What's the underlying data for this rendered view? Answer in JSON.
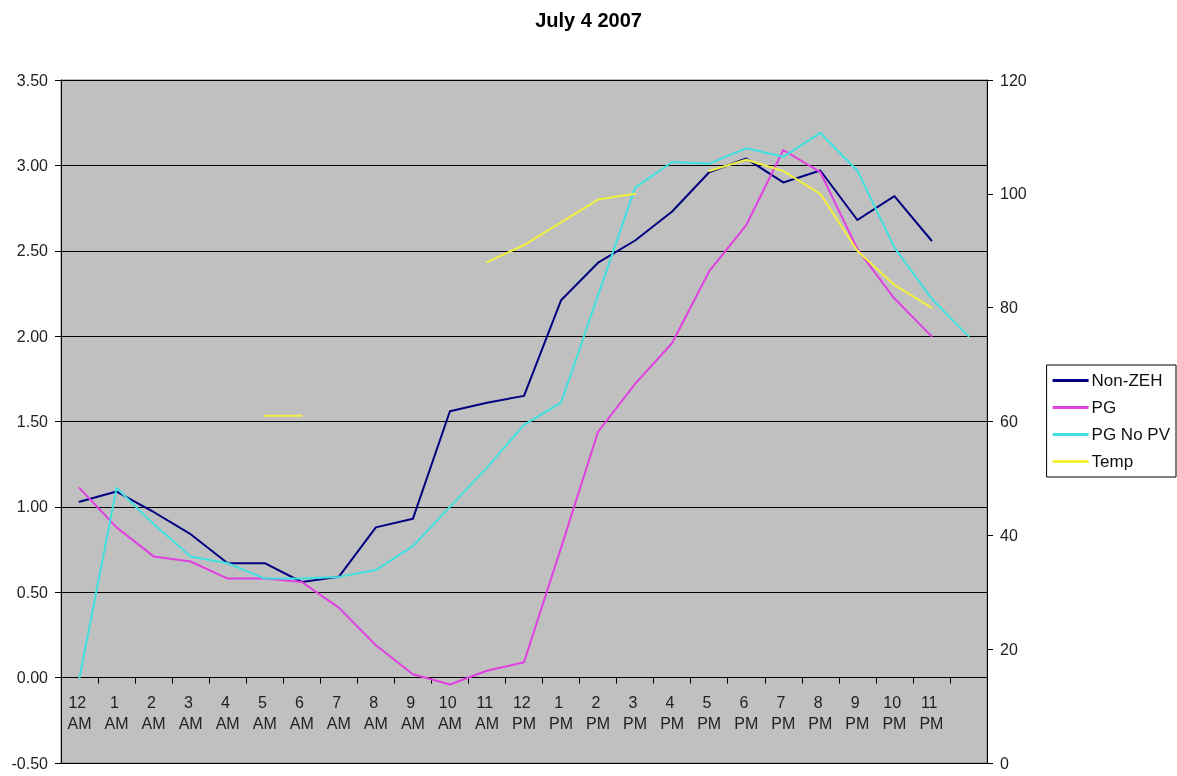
{
  "chart_data": {
    "type": "line",
    "title": "July 4 2007",
    "categories": [
      "12 AM",
      "1 AM",
      "2 AM",
      "3 AM",
      "4 AM",
      "5 AM",
      "6 AM",
      "7 AM",
      "8 AM",
      "9 AM",
      "10 AM",
      "11 AM",
      "12 PM",
      "1 PM",
      "2 PM",
      "3 PM",
      "4 PM",
      "5 PM",
      "6 PM",
      "7 PM",
      "8 PM",
      "9 PM",
      "10 PM",
      "11 PM",
      null
    ],
    "series": [
      {
        "name": "Non-ZEH",
        "color": "#000080",
        "values": [
          1.03,
          1.09,
          0.97,
          0.84,
          0.67,
          0.67,
          0.56,
          0.59,
          0.88,
          0.93,
          1.56,
          1.61,
          1.65,
          2.21,
          2.43,
          2.56,
          2.73,
          2.96,
          3.04,
          2.9,
          2.97,
          2.68,
          2.82,
          2.56,
          null
        ]
      },
      {
        "name": "PG",
        "color": "#e040e0",
        "values": [
          1.11,
          0.88,
          0.71,
          0.68,
          0.58,
          0.58,
          0.56,
          0.41,
          0.19,
          0.02,
          -0.04,
          0.04,
          0.09,
          0.76,
          1.44,
          1.72,
          1.96,
          2.38,
          2.65,
          3.09,
          2.96,
          2.51,
          2.22,
          2.0,
          null
        ]
      },
      {
        "name": "PG No PV",
        "color": "#40e0e0",
        "values": [
          0.0,
          1.11,
          0.9,
          0.71,
          0.67,
          0.58,
          0.58,
          0.59,
          0.63,
          0.77,
          1.0,
          1.23,
          1.48,
          1.61,
          2.24,
          2.87,
          3.02,
          3.01,
          3.1,
          3.05,
          3.19,
          2.97,
          2.52,
          2.22,
          2.0
        ]
      },
      {
        "name": "Temp",
        "color": "#f0f040",
        "axis": "y2",
        "values": [
          null,
          null,
          null,
          null,
          null,
          61,
          61,
          null,
          null,
          null,
          null,
          88,
          91,
          95,
          99,
          100,
          null,
          104,
          106,
          104,
          100,
          90,
          84,
          80,
          null
        ]
      }
    ],
    "ylim": [
      -0.5,
      3.5
    ],
    "yticks": [
      {
        "value": -0.5,
        "label": "-0.50"
      },
      {
        "value": 0,
        "label": "0.00"
      },
      {
        "value": 0.5,
        "label": "0.50"
      },
      {
        "value": 1,
        "label": "1.00"
      },
      {
        "value": 1.5,
        "label": "1.50"
      },
      {
        "value": 2,
        "label": "2.00"
      },
      {
        "value": 2.5,
        "label": "2.50"
      },
      {
        "value": 3,
        "label": "3.00"
      },
      {
        "value": 3.5,
        "label": "3.50"
      }
    ],
    "y2lim": [
      0,
      120
    ],
    "y2ticks": [
      0,
      20,
      40,
      60,
      80,
      100,
      120
    ],
    "grid": "y",
    "legend": "right",
    "marker": "none"
  }
}
